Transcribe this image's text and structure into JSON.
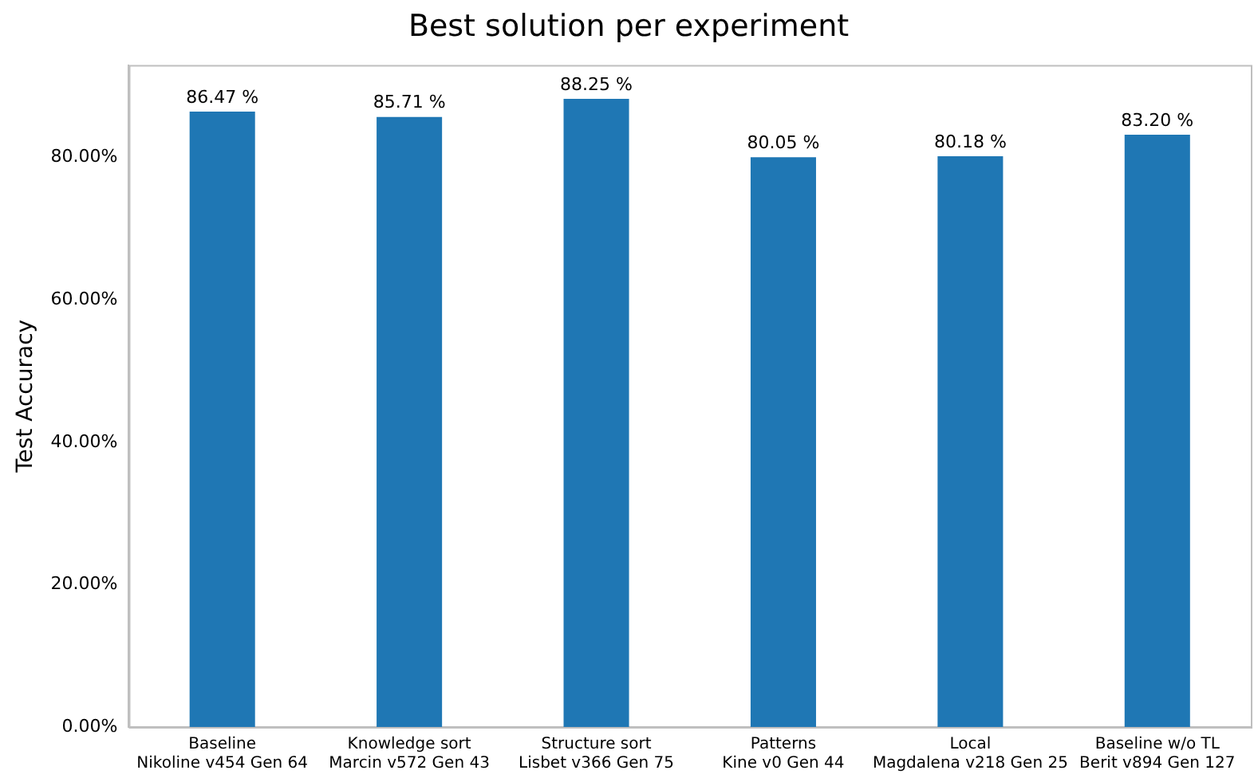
{
  "chart_data": {
    "type": "bar",
    "title": "Best solution per experiment",
    "ylabel": "Test Accuracy",
    "categories": [
      "Baseline\nNikoline v454 Gen 64",
      "Knowledge sort\nMarcin v572 Gen 43",
      "Structure sort\nLisbet v366 Gen 75",
      "Patterns\nKine v0 Gen 44",
      "Local\nMagdalena v218 Gen 25",
      "Baseline w/o TL\nBerit v894 Gen 127"
    ],
    "values": [
      86.47,
      85.71,
      88.25,
      80.05,
      80.18,
      83.2
    ],
    "value_labels": [
      "86.47 %",
      "85.71 %",
      "88.25 %",
      "80.05 %",
      "80.18 %",
      "83.20 %"
    ],
    "color": "#1f77b4",
    "ylim": [
      0,
      93
    ],
    "yticks": [
      {
        "value": 0,
        "label": "0.00%"
      },
      {
        "value": 20,
        "label": "20.00%"
      },
      {
        "value": 40,
        "label": "40.00%"
      },
      {
        "value": 60,
        "label": "60.00%"
      },
      {
        "value": 80,
        "label": "80.00%"
      }
    ],
    "grid": false,
    "legend": false
  }
}
